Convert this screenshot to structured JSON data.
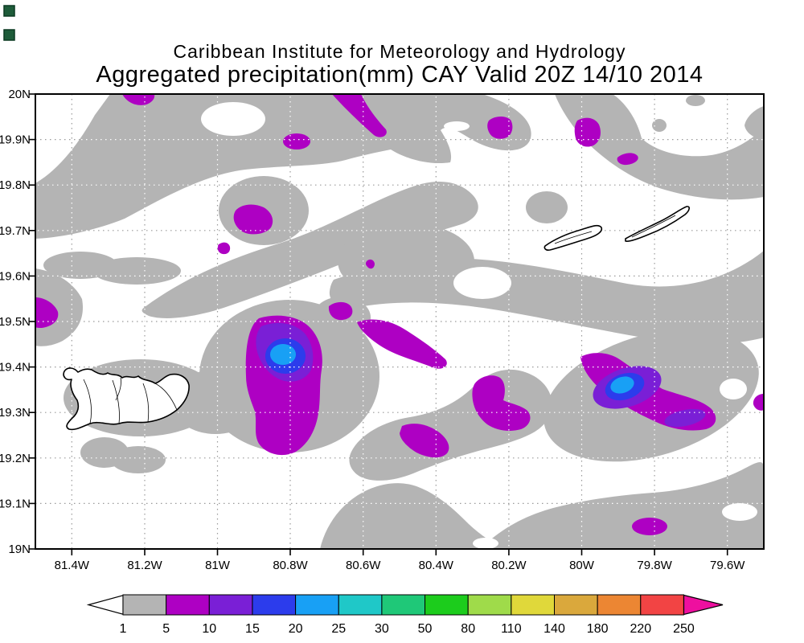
{
  "app": {
    "description": "GrADS-style aggregated precipitation contour map"
  },
  "title": {
    "line1": "Caribbean Institute for Meteorology and Hydrology",
    "line2": "Aggregated precipitation(mm) CAY Valid 20Z 14/10 2014"
  },
  "corner_markers": {
    "fill": "#1e5c3a",
    "border": "#0b3a22"
  },
  "map": {
    "y_axis_labels": [
      "20N",
      "19.9N",
      "19.8N",
      "19.7N",
      "19.6N",
      "19.5N",
      "19.4N",
      "19.3N",
      "19.2N",
      "19.1N",
      "19N"
    ],
    "x_axis_labels": [
      "81.4W",
      "81.2W",
      "81W",
      "80.8W",
      "80.6W",
      "80.4W",
      "80.2W",
      "80W",
      "79.8W",
      "79.6W"
    ],
    "frame_color": "#000000",
    "grid_color": "#9a9a9a",
    "shade_colors": {
      "gray": "#b4b4b4",
      "magenta": "#ae00c3",
      "violet": "#7a1fd6",
      "blue": "#2c3cec",
      "light_blue": "#18a0f5"
    }
  },
  "colorbar": {
    "tick_values": [
      1,
      5,
      10,
      15,
      20,
      25,
      30,
      50,
      80,
      110,
      140,
      180,
      220,
      250
    ],
    "segment_colors": [
      "#b4b4b4",
      "#ae00c3",
      "#7a1fd6",
      "#2c3cec",
      "#18a0f5",
      "#1fc8c8",
      "#1fc878",
      "#1ccc1c",
      "#9fdb4a",
      "#e0d83a",
      "#daa83c",
      "#ec8633",
      "#f24444"
    ],
    "left_arrow_fill": "#ffffff",
    "right_arrow_fill": "#ee0f9f"
  },
  "chart_data": {
    "type": "filled_contour_map",
    "title": "Caribbean Institute for Meteorology and Hydrology",
    "subtitle": "Aggregated precipitation(mm) CAY Valid 20Z 14/10 2014",
    "variable": "Aggregated precipitation (mm)",
    "x_ticks": [
      "81.4W",
      "81.2W",
      "81W",
      "80.8W",
      "80.6W",
      "80.4W",
      "80.2W",
      "80W",
      "79.8W",
      "79.6W"
    ],
    "y_ticks": [
      "20N",
      "19.9N",
      "19.8N",
      "19.7N",
      "19.6N",
      "19.5N",
      "19.4N",
      "19.3N",
      "19.2N",
      "19.1N",
      "19N"
    ],
    "legend_values": [
      1,
      5,
      10,
      15,
      20,
      25,
      30,
      50,
      80,
      110,
      140,
      180,
      220,
      250
    ],
    "legend_colors": [
      "#b4b4b4",
      "#ae00c3",
      "#7a1fd6",
      "#2c3cec",
      "#18a0f5",
      "#1fc8c8",
      "#1fc878",
      "#1ccc1c",
      "#9fdb4a",
      "#e0d83a",
      "#daa83c",
      "#ec8633",
      "#f24444"
    ],
    "grid": "dotted, 0.2 deg lon x 0.1 deg lat",
    "legend_position": "bottom horizontal colorbar with open left arrow and magenta right arrow",
    "shading_bands_visible_on_map": [
      "1-5 gray",
      "5-10 magenta",
      "10-15 violet",
      "15-20 blue",
      "20-25 light blue"
    ],
    "max_cells": [
      {
        "approx_position": "80.8W 19.42N",
        "peak_band_mm": "20-25"
      },
      {
        "approx_position": "79.9W 19.35N",
        "peak_band_mm": "20-25"
      }
    ],
    "coastlines": [
      "island-outline-west-large",
      "island-outline-center-small",
      "island-outline-northeast-small"
    ]
  }
}
